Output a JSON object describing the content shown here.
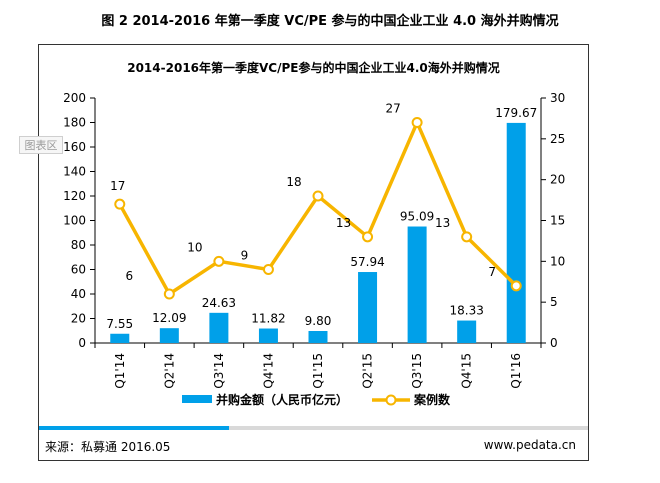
{
  "figure_title": "图 2 2014-2016 年第一季度 VC/PE 参与的中国企业工业 4.0 海外并购情况",
  "badge": "图表区",
  "footer": {
    "source": "来源：私募通  2016.05",
    "site": "www.pedata.cn"
  },
  "colors": {
    "bar": "#00a0e9",
    "line": "#f7b500",
    "axis": "#000000"
  },
  "chart_data": {
    "type": "bar+line",
    "title": "2014-2016年第一季度VC/PE参与的中国企业工业4.0海外并购情况",
    "categories": [
      "Q1'14",
      "Q2'14",
      "Q3'14",
      "Q4'14",
      "Q1'15",
      "Q2'15",
      "Q3'15",
      "Q4'15",
      "Q1'16"
    ],
    "series": [
      {
        "name": "并购金额（人民币亿元）",
        "type": "bar",
        "axis": "left",
        "values": [
          7.55,
          12.09,
          24.63,
          11.82,
          9.8,
          57.94,
          95.09,
          18.33,
          179.67
        ],
        "labels": [
          "7.55",
          "12.09",
          "24.63",
          "11.82",
          "9.80",
          "57.94",
          "95.09",
          "18.33",
          "179.67"
        ]
      },
      {
        "name": "案例数",
        "type": "line",
        "axis": "right",
        "values": [
          17,
          6,
          10,
          9,
          18,
          13,
          27,
          13,
          7
        ],
        "labels": [
          "17",
          "6",
          "10",
          "9",
          "18",
          "13",
          "27",
          "13",
          "7"
        ]
      }
    ],
    "y_left": {
      "min": 0,
      "max": 200,
      "ticks": [
        "0",
        "20",
        "40",
        "60",
        "80",
        "100",
        "120",
        "140",
        "160",
        "180",
        "200"
      ]
    },
    "y_right": {
      "min": 0,
      "max": 30,
      "ticks": [
        "0",
        "5",
        "10",
        "15",
        "20",
        "25",
        "30"
      ]
    },
    "legend_position": "bottom",
    "grid": false
  }
}
